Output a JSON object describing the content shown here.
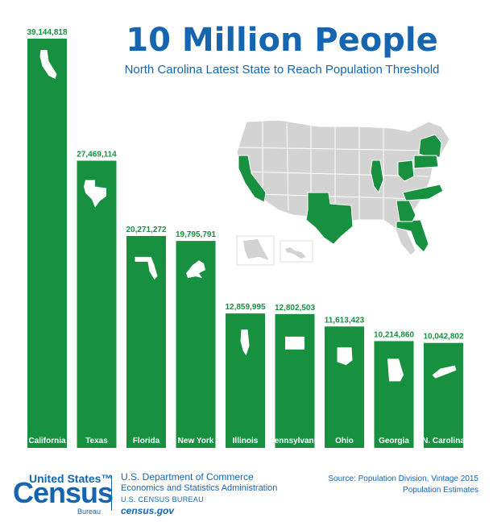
{
  "title": "10 Million People",
  "subtitle": "North Carolina Latest State to Reach Population Threshold",
  "colors": {
    "bar": "#17903f",
    "label": "#17903f",
    "accent": "#1565b0",
    "map_base": "#d3d3d3",
    "map_highlight": "#17903f"
  },
  "chart_data": {
    "type": "bar",
    "categories": [
      "California",
      "Texas",
      "Florida",
      "New York",
      "Illinois",
      "Pennsylvania",
      "Ohio",
      "Georgia",
      "N. Carolina"
    ],
    "values": [
      39144818,
      27469114,
      20271272,
      19795791,
      12859995,
      12802503,
      11613423,
      10214860,
      10042802
    ],
    "value_labels": [
      "39,144,818",
      "27,469,114",
      "20,271,272",
      "19,795,791",
      "12,859,995",
      "12,802,503",
      "11,613,423",
      "10,214,860",
      "10,042,802"
    ],
    "icons": [
      "california-icon",
      "texas-icon",
      "florida-icon",
      "new-york-icon",
      "illinois-icon",
      "pennsylvania-icon",
      "ohio-icon",
      "georgia-icon",
      "north-carolina-icon"
    ],
    "title": "10 Million People",
    "xlabel": "",
    "ylabel": "",
    "ylim": [
      0,
      39144818
    ]
  },
  "footer": {
    "brand_top": "United States™",
    "brand_main": "Census",
    "brand_bottom": "Bureau",
    "dept_line1": "U.S. Department of Commerce",
    "dept_line2": "Economics and Statistics Administration",
    "dept_line3": "U.S. CENSUS BUREAU",
    "dept_line4": "census.gov",
    "source_line1": "Source: Population Division, Vintage 2015",
    "source_line2": "Population Estimates"
  }
}
